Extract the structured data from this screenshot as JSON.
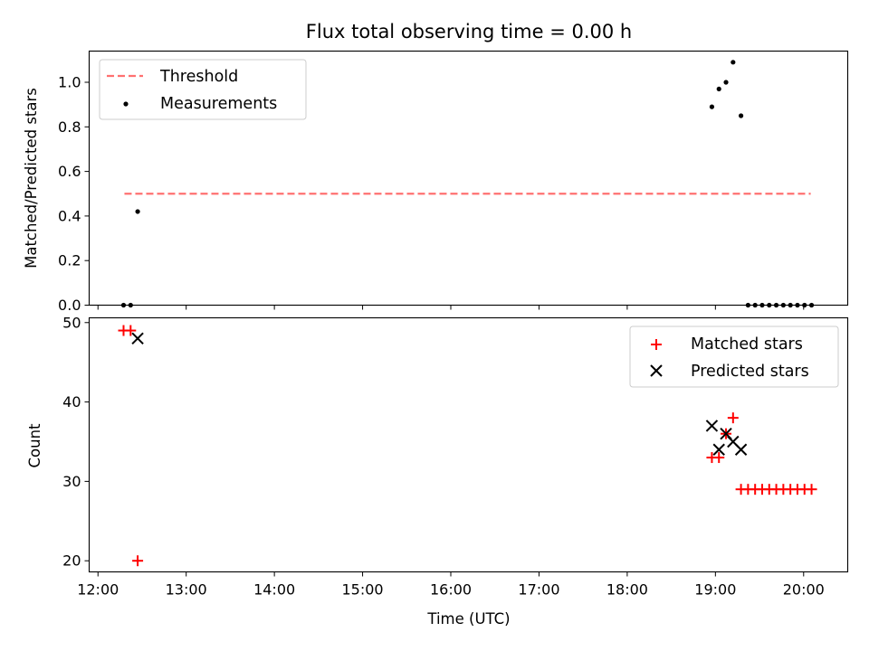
{
  "chart_data": {
    "title": "Flux total observing time = 0.00 h",
    "xlabel": "Time (UTC)",
    "x_range_hours": [
      11.9,
      20.5
    ],
    "x_ticks": [
      "12:00",
      "13:00",
      "14:00",
      "15:00",
      "16:00",
      "17:00",
      "18:00",
      "19:00",
      "20:00"
    ],
    "x_tick_hours": [
      12,
      13,
      14,
      15,
      16,
      17,
      18,
      19,
      20
    ],
    "colors": {
      "threshold": "#ff7070",
      "matched": "#ff0000",
      "predicted": "#000000",
      "measurement": "#000000"
    },
    "panels": [
      {
        "type": "scatter",
        "ylabel": "Matched/Predicted stars",
        "ylim": [
          0,
          1.14
        ],
        "y_ticks": [
          "0.0",
          "0.2",
          "0.4",
          "0.6",
          "0.8",
          "1.0"
        ],
        "y_tick_values": [
          0,
          0.2,
          0.4,
          0.6,
          0.8,
          1.0
        ],
        "legend_position": "top-left",
        "threshold": {
          "name": "Threshold",
          "y": 0.5,
          "x_start": 12.3,
          "x_end": 20.08
        },
        "series": [
          {
            "name": "Measurements",
            "points": [
              [
                12.29,
                0.0
              ],
              [
                12.37,
                0.0
              ],
              [
                12.45,
                0.42
              ],
              [
                18.96,
                0.89
              ],
              [
                19.04,
                0.97
              ],
              [
                19.12,
                1.0
              ],
              [
                19.2,
                1.09
              ],
              [
                19.29,
                0.85
              ],
              [
                19.37,
                0.0
              ],
              [
                19.45,
                0.0
              ],
              [
                19.53,
                0.0
              ],
              [
                19.61,
                0.0
              ],
              [
                19.69,
                0.0
              ],
              [
                19.77,
                0.0
              ],
              [
                19.85,
                0.0
              ],
              [
                19.93,
                0.0
              ],
              [
                20.01,
                0.0
              ],
              [
                20.09,
                0.0
              ]
            ]
          }
        ]
      },
      {
        "type": "scatter",
        "ylabel": "Count",
        "ylim": [
          18.6,
          50.6
        ],
        "y_ticks": [
          "20",
          "30",
          "40",
          "50"
        ],
        "y_tick_values": [
          20,
          30,
          40,
          50
        ],
        "legend_position": "top-right",
        "series": [
          {
            "name": "Matched stars",
            "marker": "plus",
            "points": [
              [
                12.29,
                49
              ],
              [
                12.37,
                49
              ],
              [
                12.45,
                20
              ],
              [
                18.96,
                33
              ],
              [
                19.04,
                33
              ],
              [
                19.12,
                36
              ],
              [
                19.2,
                38
              ],
              [
                19.29,
                29
              ],
              [
                19.37,
                29
              ],
              [
                19.45,
                29
              ],
              [
                19.53,
                29
              ],
              [
                19.61,
                29
              ],
              [
                19.69,
                29
              ],
              [
                19.77,
                29
              ],
              [
                19.85,
                29
              ],
              [
                19.93,
                29
              ],
              [
                20.01,
                29
              ],
              [
                20.09,
                29
              ]
            ]
          },
          {
            "name": "Predicted stars",
            "marker": "x",
            "points": [
              [
                12.45,
                48
              ],
              [
                18.96,
                37
              ],
              [
                19.04,
                34
              ],
              [
                19.12,
                36
              ],
              [
                19.2,
                35
              ],
              [
                19.29,
                34
              ]
            ]
          }
        ]
      }
    ]
  }
}
